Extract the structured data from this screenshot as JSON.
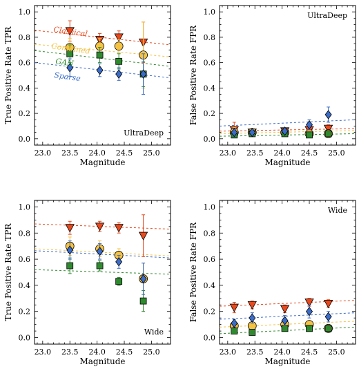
{
  "chart_data": [
    {
      "type": "scatter",
      "xlabel": "Magnitude",
      "ylabel": "True Positive Rate  TPR",
      "annotation": "UltraDeep",
      "xlim": [
        22.85,
        25.35
      ],
      "ylim": [
        -0.05,
        1.05
      ],
      "xticks": [
        "23.0",
        "23.5",
        "24.0",
        "24.5",
        "25.0"
      ],
      "yticks": [
        "0.0",
        "0.2",
        "0.4",
        "0.6",
        "0.8",
        "1.0"
      ],
      "legend": [
        "Classical",
        "Combined",
        "GAN",
        "Sparse"
      ],
      "series": [
        {
          "name": "Classical",
          "color": "#e8491d",
          "marker": "triangle",
          "x": [
            23.5,
            24.05,
            24.4,
            24.85
          ],
          "y": [
            0.85,
            0.78,
            0.8,
            0.76
          ],
          "err": [
            0.08,
            0.05,
            0.05,
            0.16
          ],
          "trend": [
            0.855,
            0.74
          ]
        },
        {
          "name": "Combined",
          "color": "#f5c242",
          "marker": "circle",
          "x": [
            23.5,
            24.05,
            24.4,
            24.85
          ],
          "y": [
            0.72,
            0.73,
            0.73,
            0.66
          ],
          "err": [
            0.07,
            0.06,
            0.05,
            0.26
          ],
          "trend": [
            0.745,
            0.645
          ]
        },
        {
          "name": "GAN",
          "color": "#2f8a2f",
          "marker": "square",
          "x": [
            23.5,
            24.05,
            24.4,
            24.85
          ],
          "y": [
            0.67,
            0.66,
            0.61,
            0.51
          ],
          "err": [
            0.07,
            0.06,
            0.06,
            0.1
          ],
          "trend": [
            0.695,
            0.57
          ]
        },
        {
          "name": "Sparse",
          "color": "#3a6cc8",
          "marker": "diamond",
          "x": [
            23.5,
            24.05,
            24.4,
            24.85
          ],
          "y": [
            0.56,
            0.54,
            0.51,
            0.51
          ],
          "err": [
            0.07,
            0.05,
            0.05,
            0.16
          ],
          "trend": [
            0.6,
            0.48
          ]
        }
      ]
    },
    {
      "type": "scatter",
      "xlabel": "Magnitude",
      "ylabel": "False Positive Rate  FPR",
      "annotation": "UltraDeep",
      "xlim": [
        22.85,
        25.35
      ],
      "ylim": [
        -0.05,
        1.05
      ],
      "xticks": [
        "23.0",
        "23.5",
        "24.0",
        "24.5",
        "25.0"
      ],
      "yticks": [
        "0.0",
        "0.2",
        "0.4",
        "0.6",
        "0.8",
        "1.0"
      ],
      "legend": [],
      "series": [
        {
          "name": "Classical",
          "color": "#e8491d",
          "marker": "triangle",
          "x": [
            23.12,
            23.45,
            24.05,
            24.5,
            24.85
          ],
          "y": [
            0.07,
            0.05,
            0.06,
            0.07,
            0.08
          ],
          "err": [
            0.06,
            0.02,
            0.02,
            0.03,
            0.03
          ],
          "trend": [
            0.06,
            0.08
          ]
        },
        {
          "name": "Combined",
          "color": "#f5c242",
          "marker": "circle",
          "x": [
            23.12,
            23.45,
            24.05,
            24.5,
            24.85
          ],
          "y": [
            0.05,
            0.05,
            0.05,
            0.04,
            0.04
          ],
          "err": [
            0.04,
            0.02,
            0.02,
            0.02,
            0.02
          ],
          "trend": [
            0.04,
            0.065
          ]
        },
        {
          "name": "GAN",
          "color": "#2f8a2f",
          "marker": "square",
          "x": [
            23.12,
            23.45,
            24.05,
            24.5,
            24.85
          ],
          "y": [
            0.03,
            0.04,
            0.04,
            0.03,
            0.04
          ],
          "err": [
            0.02,
            0.02,
            0.02,
            0.02,
            0.02
          ],
          "trend": [
            0.02,
            0.04
          ]
        },
        {
          "name": "Sparse",
          "color": "#3a6cc8",
          "marker": "diamond",
          "x": [
            23.12,
            23.45,
            24.05,
            24.5,
            24.85
          ],
          "y": [
            0.05,
            0.05,
            0.06,
            0.11,
            0.19
          ],
          "err": [
            0.03,
            0.02,
            0.02,
            0.04,
            0.06
          ],
          "trend": [
            0.1,
            0.15
          ]
        }
      ]
    },
    {
      "type": "scatter",
      "xlabel": "Magnitude",
      "ylabel": "True Positive Rate  TPR",
      "annotation": "Wide",
      "xlim": [
        22.85,
        25.35
      ],
      "ylim": [
        -0.05,
        1.05
      ],
      "xticks": [
        "23.0",
        "23.5",
        "24.0",
        "24.5",
        "25.0"
      ],
      "yticks": [
        "0.0",
        "0.2",
        "0.4",
        "0.6",
        "0.8",
        "1.0"
      ],
      "legend": [],
      "series": [
        {
          "name": "Classical",
          "color": "#e8491d",
          "marker": "triangle",
          "x": [
            23.5,
            24.05,
            24.4,
            24.85
          ],
          "y": [
            0.84,
            0.85,
            0.84,
            0.78
          ],
          "err": [
            0.05,
            0.04,
            0.04,
            0.16
          ],
          "trend": [
            0.87,
            0.83
          ]
        },
        {
          "name": "Combined",
          "color": "#f5c242",
          "marker": "circle",
          "x": [
            23.5,
            24.05,
            24.4,
            24.85
          ],
          "y": [
            0.7,
            0.68,
            0.63,
            0.45
          ],
          "err": [
            0.07,
            0.06,
            0.05,
            0.12
          ],
          "trend": [
            0.68,
            0.625
          ]
        },
        {
          "name": "GAN",
          "color": "#2f8a2f",
          "marker": "square",
          "x": [
            23.5,
            24.05,
            24.4,
            24.85
          ],
          "y": [
            0.55,
            0.55,
            0.43,
            0.28
          ],
          "err": [
            0.06,
            0.04,
            0.03,
            0.08
          ],
          "trend": [
            0.52,
            0.485
          ]
        },
        {
          "name": "Sparse",
          "color": "#3a6cc8",
          "marker": "diamond",
          "x": [
            23.5,
            24.05,
            24.4,
            24.85
          ],
          "y": [
            0.67,
            0.66,
            0.58,
            0.45
          ],
          "err": [
            0.07,
            0.06,
            0.05,
            0.12
          ],
          "trend": [
            0.665,
            0.61
          ]
        }
      ]
    },
    {
      "type": "scatter",
      "xlabel": "Magnitude",
      "ylabel": "False Positive Rate  FPR",
      "annotation": "Wide",
      "xlim": [
        22.85,
        25.35
      ],
      "ylim": [
        -0.05,
        1.05
      ],
      "xticks": [
        "23.0",
        "23.5",
        "24.0",
        "24.5",
        "25.0"
      ],
      "yticks": [
        "0.0",
        "0.2",
        "0.4",
        "0.6",
        "0.8",
        "1.0"
      ],
      "legend": [],
      "series": [
        {
          "name": "Classical",
          "color": "#e8491d",
          "marker": "triangle",
          "x": [
            23.12,
            23.45,
            24.05,
            24.5,
            24.85
          ],
          "y": [
            0.23,
            0.25,
            0.22,
            0.27,
            0.26
          ],
          "err": [
            0.04,
            0.03,
            0.03,
            0.03,
            0.03
          ],
          "trend": [
            0.24,
            0.285
          ]
        },
        {
          "name": "Combined",
          "color": "#f5c242",
          "marker": "circle",
          "x": [
            23.12,
            23.45,
            24.05,
            24.5,
            24.85
          ],
          "y": [
            0.09,
            0.09,
            0.1,
            0.1,
            0.07
          ],
          "err": [
            0.03,
            0.02,
            0.03,
            0.03,
            0.02
          ],
          "trend": [
            0.08,
            0.125
          ]
        },
        {
          "name": "GAN",
          "color": "#2f8a2f",
          "marker": "square",
          "x": [
            23.12,
            23.45,
            24.05,
            24.5,
            24.85
          ],
          "y": [
            0.05,
            0.04,
            0.07,
            0.07,
            0.07
          ],
          "err": [
            0.02,
            0.02,
            0.02,
            0.02,
            0.02
          ],
          "trend": [
            0.03,
            0.08
          ]
        },
        {
          "name": "Sparse",
          "color": "#3a6cc8",
          "marker": "diamond",
          "x": [
            23.12,
            23.45,
            24.05,
            24.5,
            24.85
          ],
          "y": [
            0.11,
            0.15,
            0.13,
            0.2,
            0.16
          ],
          "err": [
            0.03,
            0.04,
            0.04,
            0.05,
            0.04
          ],
          "trend": [
            0.14,
            0.19
          ]
        }
      ]
    }
  ]
}
